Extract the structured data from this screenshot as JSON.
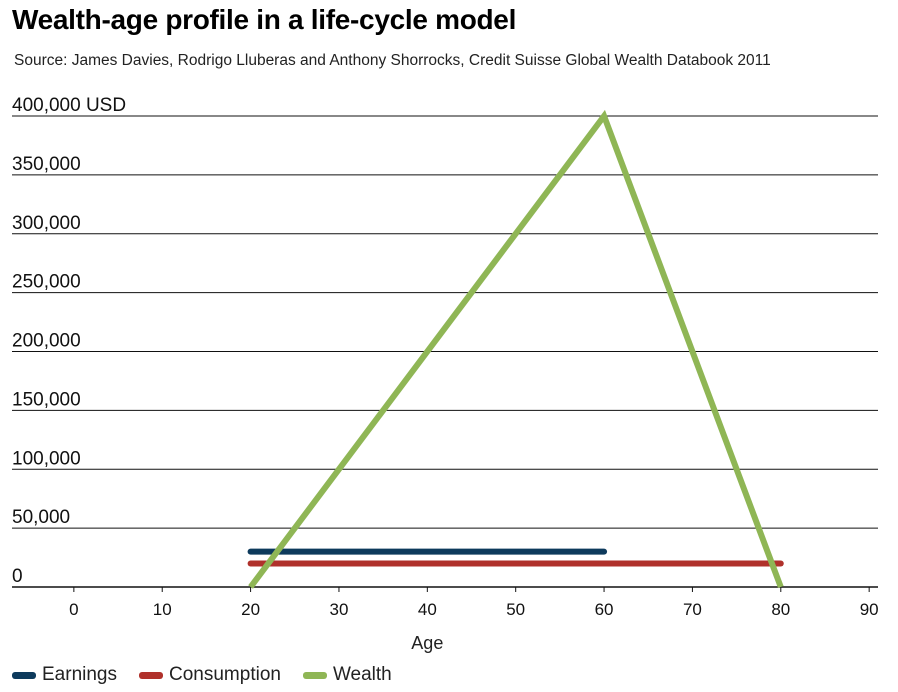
{
  "chart_data": {
    "type": "line",
    "title": "Wealth-age profile in a life-cycle model",
    "subtitle": "Source: James Davies, Rodrigo Lluberas and Anthony Shorrocks, Credit Suisse Global Wealth Databook 2011",
    "xlabel": "Age",
    "ylabel": "",
    "xlim": [
      -7,
      91
    ],
    "ylim": [
      0,
      400000
    ],
    "x_ticks": [
      0,
      10,
      20,
      30,
      40,
      50,
      60,
      70,
      80,
      90
    ],
    "y_ticks": [
      0,
      50000,
      100000,
      150000,
      200000,
      250000,
      300000,
      350000,
      400000
    ],
    "y_tick_labels": [
      "0",
      "50,000",
      "100,000",
      "150,000",
      "200,000",
      "250,000",
      "300,000",
      "350,000",
      "400,000 USD"
    ],
    "grid": "horizontal",
    "legend_position": "bottom-left",
    "series": [
      {
        "name": "Earnings",
        "color": "#0d3a5c",
        "x": [
          20,
          60
        ],
        "y": [
          30000,
          30000
        ]
      },
      {
        "name": "Consumption",
        "color": "#b0312b",
        "x": [
          20,
          80
        ],
        "y": [
          20000,
          20000
        ]
      },
      {
        "name": "Wealth",
        "color": "#8fb655",
        "x": [
          20,
          60,
          80
        ],
        "y": [
          0,
          400000,
          0
        ]
      }
    ]
  }
}
